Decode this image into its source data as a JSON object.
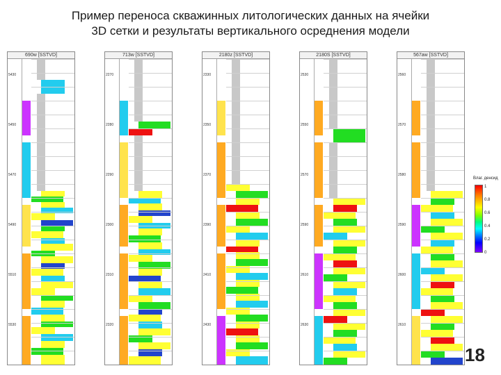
{
  "slide": {
    "title_line1": "Пример переноса скважинных литологических данных на ячейки",
    "title_line2": "3D сетки и результаты вертикального осреднения модели",
    "page_number": "18"
  },
  "wells": [
    {
      "name": "690w [SSTVD]",
      "depths": [
        "5430",
        "5450",
        "5470",
        "5490",
        "5510",
        "5530"
      ]
    },
    {
      "name": "713w [SSTVD]",
      "depths": [
        "2270",
        "2280",
        "2290",
        "2300",
        "2310",
        "2320"
      ]
    },
    {
      "name": "2180z [SSTVD]",
      "depths": [
        "2330",
        "2350",
        "2370",
        "2390",
        "2410",
        "2430"
      ]
    },
    {
      "name": "2180S [SSTVD]",
      "depths": [
        "2530",
        "2550",
        "2570",
        "2590",
        "2610",
        "2630"
      ]
    },
    {
      "name": "567aw [SSTVD]",
      "depths": [
        "2560",
        "2570",
        "2580",
        "2590",
        "2600",
        "2610"
      ]
    }
  ],
  "legend": {
    "title": "Влаг. денсид",
    "ticks": [
      "1",
      "0.8",
      "0.6",
      "0.4",
      "0.2",
      "0"
    ]
  },
  "colors": {
    "sand": "#ffff33",
    "sand_alt": "#ffe34d",
    "green": "#22dd22",
    "cyan": "#22ccee",
    "blue": "#2244cc",
    "red": "#ee1111",
    "orange": "#ffaa22",
    "gray": "#c8c8c8",
    "magenta": "#cc33ff"
  }
}
